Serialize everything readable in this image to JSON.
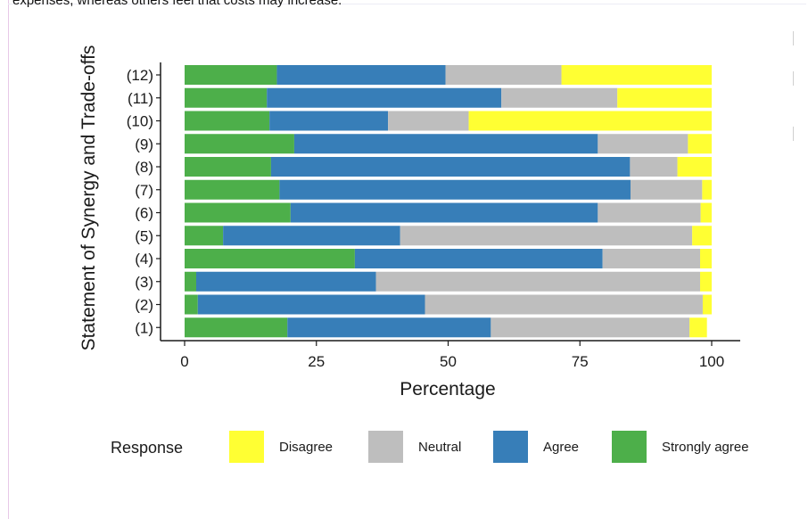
{
  "caption_fragment": "expenses, whereas others feel that costs may increase.",
  "chart_data": {
    "type": "bar",
    "orientation": "horizontal",
    "stacked": true,
    "xlabel": "Percentage",
    "ylabel": "Statement of Synergy and Trade-offs",
    "xlim": [
      0,
      100
    ],
    "xticks": [
      "0",
      "25",
      "50",
      "75",
      "100"
    ],
    "categories": [
      "(1)",
      "(2)",
      "(3)",
      "(4)",
      "(5)",
      "(6)",
      "(7)",
      "(8)",
      "(9)",
      "(10)",
      "(11)",
      "(12)"
    ],
    "series": [
      {
        "name": "Strongly agree",
        "color": "#4daf4a",
        "values": [
          19.5,
          2.5,
          2.2,
          32.3,
          7.3,
          20.1,
          18.0,
          16.4,
          20.8,
          16.1,
          15.6,
          17.5
        ]
      },
      {
        "name": "Agree",
        "color": "#377eb8",
        "values": [
          38.6,
          43.1,
          34.1,
          47.0,
          33.6,
          58.3,
          66.6,
          68.1,
          57.6,
          22.5,
          44.5,
          32.0
        ]
      },
      {
        "name": "Neutral",
        "color": "#bebebe",
        "values": [
          37.7,
          52.7,
          61.5,
          18.5,
          55.4,
          19.5,
          13.6,
          9.0,
          17.1,
          15.3,
          22.0,
          22.0
        ]
      },
      {
        "name": "Disagree",
        "color": "#ffff33",
        "values": [
          3.3,
          1.7,
          2.2,
          2.2,
          3.7,
          2.1,
          1.8,
          6.5,
          4.5,
          46.1,
          17.9,
          28.5
        ]
      }
    ],
    "legend": {
      "title": "Response",
      "position": "bottom",
      "items": [
        {
          "label": "Disagree",
          "color": "#ffff33"
        },
        {
          "label": "Neutral",
          "color": "#bebebe"
        },
        {
          "label": "Agree",
          "color": "#377eb8"
        },
        {
          "label": "Strongly agree",
          "color": "#4daf4a"
        }
      ]
    },
    "grid": false
  }
}
